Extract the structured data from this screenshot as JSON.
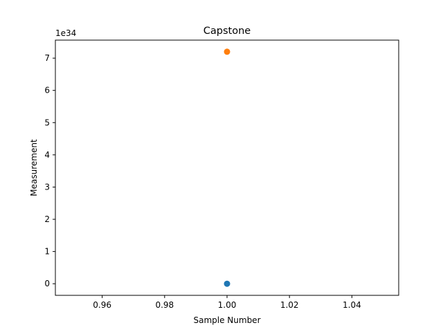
{
  "chart_data": {
    "type": "scatter",
    "title": "Capstone",
    "xlabel": "Sample Number",
    "ylabel": "Measurement",
    "y_offset_text": "1e34",
    "xlim": [
      0.945,
      1.055
    ],
    "ylim": [
      -0.36,
      7.56
    ],
    "y_scale_exponent": 34,
    "x_ticks": [
      0.96,
      0.98,
      1.0,
      1.02,
      1.04
    ],
    "x_tick_labels": [
      "0.96",
      "0.98",
      "1.00",
      "1.02",
      "1.04"
    ],
    "y_ticks": [
      0,
      1,
      2,
      3,
      4,
      5,
      6,
      7
    ],
    "y_tick_labels": [
      "0",
      "1",
      "2",
      "3",
      "4",
      "5",
      "6",
      "7"
    ],
    "grid": false,
    "series": [
      {
        "color": "#1f77b4",
        "points": [
          {
            "x": 1.0,
            "y": 0
          }
        ]
      },
      {
        "color": "#ff7f0e",
        "points": [
          {
            "x": 1.0,
            "y": 7.2
          }
        ]
      }
    ]
  }
}
